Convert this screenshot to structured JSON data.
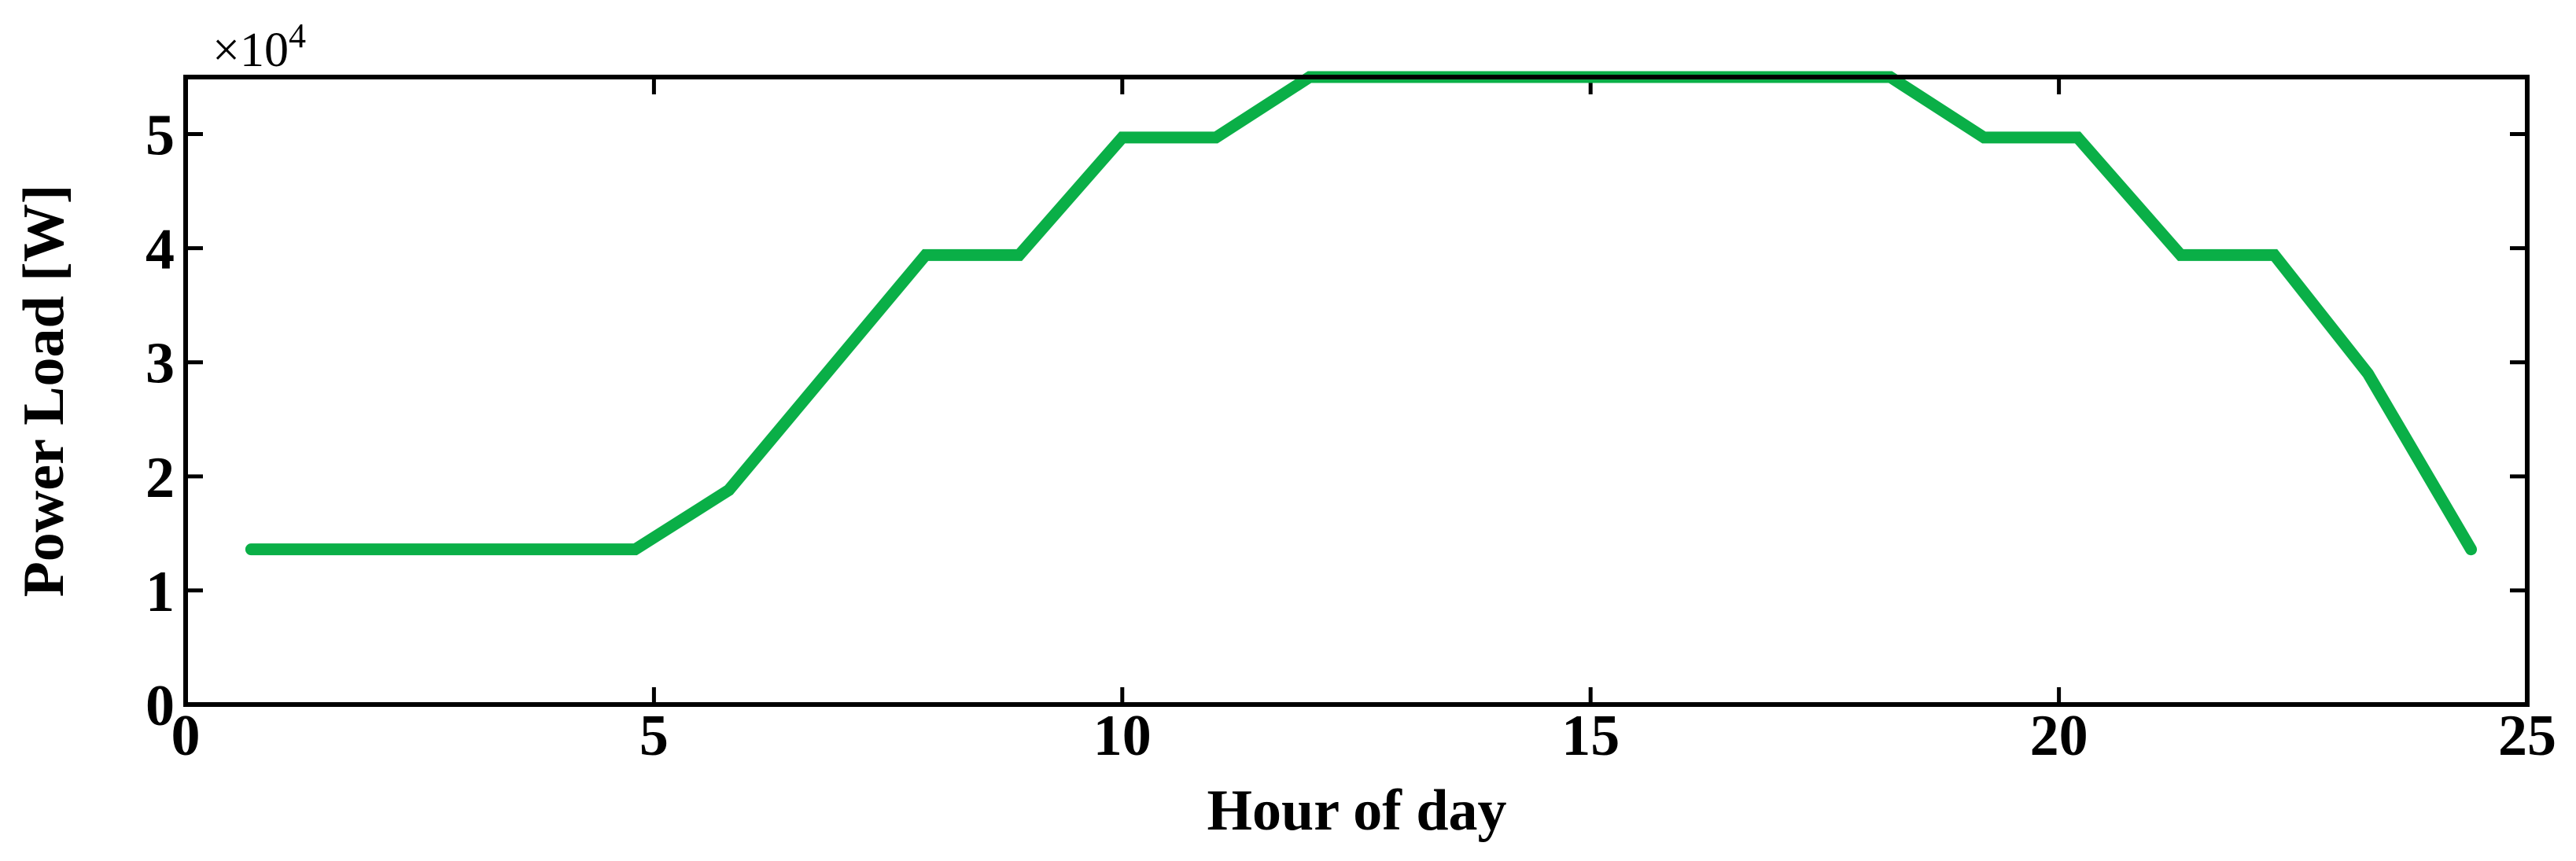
{
  "chart_data": {
    "type": "line",
    "x_label": "Hour of day",
    "y_label": "Power Load [W]",
    "multiplier": "×10",
    "multiplier_exponent": "4",
    "x": [
      0.7,
      4.8,
      5.8,
      7.9,
      8.9,
      10,
      11,
      12,
      18.2,
      19.2,
      20.2,
      21.3,
      22.3,
      23.3,
      24.4
    ],
    "values": [
      13600,
      13600,
      18800,
      39400,
      39400,
      49700,
      49700,
      55000,
      55000,
      49700,
      49700,
      39400,
      39400,
      29000,
      13600
    ],
    "color": "#0aaf47",
    "xlim": [
      0,
      25
    ],
    "xticks": [
      0,
      5,
      10,
      15,
      20,
      25
    ],
    "ylim": [
      0,
      55000
    ],
    "yticks": [
      {
        "value": 0,
        "label": "0"
      },
      {
        "value": 10000,
        "label": "1"
      },
      {
        "value": 20000,
        "label": "2"
      },
      {
        "value": 30000,
        "label": "3"
      },
      {
        "value": 40000,
        "label": "4"
      },
      {
        "value": 50000,
        "label": "5"
      }
    ],
    "grid": false
  }
}
